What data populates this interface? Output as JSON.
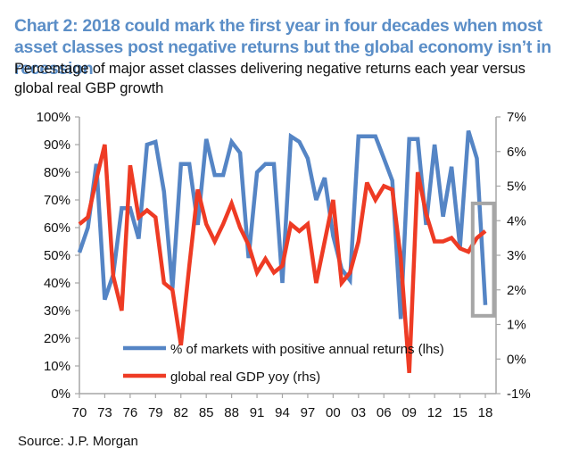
{
  "header": {
    "title": "Chart 2: 2018 could mark the first year in four decades when most asset classes post negative returns but the global economy isn’t in recession",
    "subtitle": "Percentage of major asset classes delivering negative returns each year versus global real GBP growth"
  },
  "footer": {
    "source": "Source: J.P. Morgan"
  },
  "colors": {
    "title": "#5b8ec7",
    "series_markets": "#5585c5",
    "series_gdp": "#ee3b24",
    "axis": "#a6a6a6",
    "highlight_box": "#a6a6a6"
  },
  "chart_data": {
    "type": "line",
    "title": "Chart 2: 2018 could mark the first year in four decades when most asset classes post negative returns but the global economy isn’t in recession",
    "subtitle": "Percentage of major asset classes delivering negative returns each year versus global real GBP growth",
    "x": [
      1970,
      1971,
      1972,
      1973,
      1974,
      1975,
      1976,
      1977,
      1978,
      1979,
      1980,
      1981,
      1982,
      1983,
      1984,
      1985,
      1986,
      1987,
      1988,
      1989,
      1990,
      1991,
      1992,
      1993,
      1994,
      1995,
      1996,
      1997,
      1998,
      1999,
      2000,
      2001,
      2002,
      2003,
      2004,
      2005,
      2006,
      2007,
      2008,
      2009,
      2010,
      2011,
      2012,
      2013,
      2014,
      2015,
      2016,
      2017,
      2018
    ],
    "x_tick_labels": [
      "70",
      "73",
      "76",
      "79",
      "82",
      "85",
      "88",
      "91",
      "94",
      "97",
      "00",
      "03",
      "06",
      "09",
      "12",
      "15",
      "18"
    ],
    "x_tick_values": [
      1970,
      1973,
      1976,
      1979,
      1982,
      1985,
      1988,
      1991,
      1994,
      1997,
      2000,
      2003,
      2006,
      2009,
      2012,
      2015,
      2018
    ],
    "xlim": [
      1970,
      2019
    ],
    "series": [
      {
        "name": "% of markets with positive annual returns (lhs)",
        "axis": "left",
        "unit": "%",
        "values": [
          51,
          60,
          83,
          34,
          43,
          67,
          67,
          56,
          90,
          91,
          73,
          38,
          83,
          83,
          61,
          92,
          79,
          79,
          91,
          87,
          49,
          80,
          83,
          83,
          40,
          93,
          91,
          85,
          70,
          78,
          57,
          45,
          41,
          93,
          93,
          93,
          85,
          77,
          27,
          92,
          92,
          61,
          90,
          64,
          82,
          53,
          95,
          85,
          32
        ]
      },
      {
        "name": "global real GDP yoy (rhs)",
        "axis": "right",
        "unit": "%",
        "values": [
          3.9,
          4.1,
          5.2,
          6.2,
          2.4,
          1.4,
          5.6,
          4.1,
          4.3,
          4.1,
          2.2,
          2.0,
          0.4,
          2.7,
          4.9,
          3.9,
          3.4,
          3.9,
          4.5,
          3.8,
          3.3,
          2.5,
          2.9,
          2.5,
          2.7,
          3.9,
          3.7,
          3.9,
          2.2,
          3.4,
          4.6,
          2.2,
          2.5,
          3.4,
          5.1,
          4.6,
          5.0,
          4.9,
          2.9,
          -0.4,
          5.4,
          4.2,
          3.4,
          3.4,
          3.5,
          3.2,
          3.1,
          3.5,
          3.7
        ]
      }
    ],
    "y_left": {
      "ylim": [
        0,
        100
      ],
      "ticks": [
        0,
        10,
        20,
        30,
        40,
        50,
        60,
        70,
        80,
        90,
        100
      ],
      "tick_labels": [
        "0%",
        "10%",
        "20%",
        "30%",
        "40%",
        "50%",
        "60%",
        "70%",
        "80%",
        "90%",
        "100%"
      ]
    },
    "y_right": {
      "ylim": [
        -1,
        7
      ],
      "ticks": [
        -1,
        0,
        1,
        2,
        3,
        4,
        5,
        6,
        7
      ],
      "tick_labels": [
        "-1%",
        "0%",
        "1%",
        "2%",
        "3%",
        "4%",
        "5%",
        "6%",
        "7%"
      ]
    },
    "grid": false,
    "legend": {
      "placement": "bottom-center",
      "entries": [
        "% of markets with positive annual returns (lhs)",
        "global real GDP yoy (rhs)"
      ]
    },
    "annotations": [
      {
        "type": "highlight-box",
        "x_range": [
          2016.5,
          2019
        ],
        "y_right_range": [
          1.25,
          4.5
        ],
        "label": "2018 highlight"
      }
    ]
  }
}
